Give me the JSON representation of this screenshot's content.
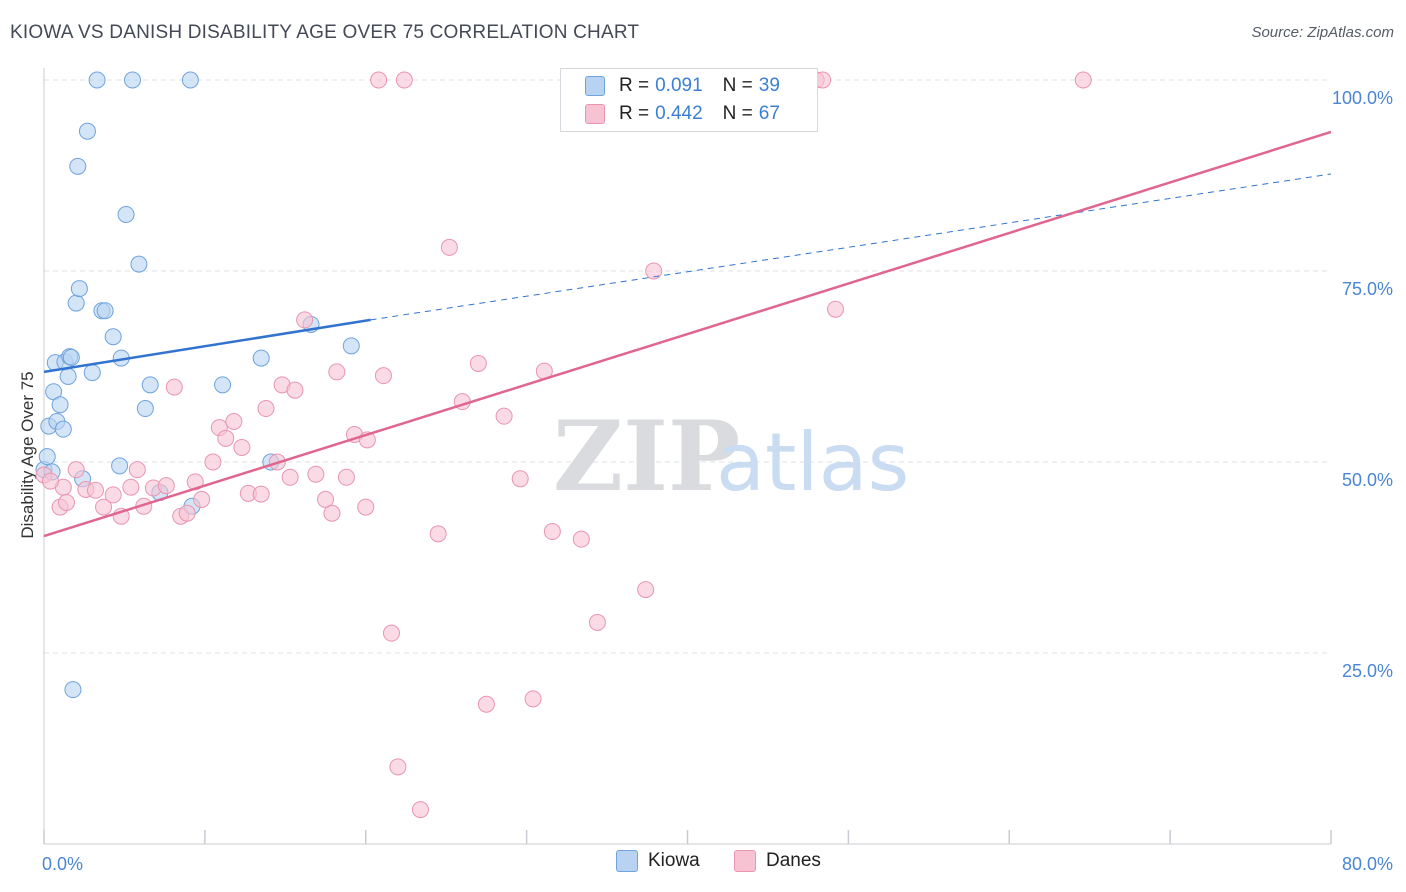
{
  "title": "KIOWA VS DANISH DISABILITY AGE OVER 75 CORRELATION CHART",
  "source": "Source: ZipAtlas.com",
  "watermark": {
    "zip": "ZIP",
    "atlas": "atlas"
  },
  "legend_top": [
    {
      "r_label": "R =",
      "r_value": "0.091",
      "n_label": "N =",
      "n_value": "39"
    },
    {
      "r_label": "R =",
      "r_value": "0.442",
      "n_label": "N =",
      "n_value": "67"
    }
  ],
  "colors": {
    "kiowa_fill": "#b8d3f2",
    "kiowa_stroke": "#6fa3dc",
    "kiowa_line": "#3273d0",
    "danes_fill": "#f7c3d3",
    "danes_stroke": "#e995b0",
    "danes_line": "#e06690",
    "tick_label": "#4a86d4",
    "grid": "#dde1e6"
  },
  "chart_data": {
    "type": "scatter",
    "title": "KIOWA VS DANISH DISABILITY AGE OVER 75 CORRELATION CHART",
    "xlabel": "",
    "ylabel": "Disability Age Over 75",
    "xlim": [
      0,
      80
    ],
    "ylim": [
      0,
      100
    ],
    "x_tick_labels": [
      {
        "value": 0,
        "label": "0.0%"
      },
      {
        "value": 80,
        "label": "80.0%"
      }
    ],
    "y_tick_labels": [
      {
        "value": 100,
        "label": "100.0%"
      },
      {
        "value": 75,
        "label": "75.0%"
      },
      {
        "value": 50,
        "label": "50.0%"
      },
      {
        "value": 25,
        "label": "25.0%"
      }
    ],
    "grid": true,
    "legend_position": "bottom",
    "series": [
      {
        "name": "Kiowa",
        "r": 0.091,
        "n": 39,
        "trend": {
          "x0": 0,
          "y0": 61.8,
          "x_solid_end": 20.3,
          "y_solid_end": 68.6,
          "x1": 80,
          "y1": 87.7
        },
        "points": [
          [
            0.0,
            49.0
          ],
          [
            0.2,
            50.7
          ],
          [
            0.3,
            54.7
          ],
          [
            0.5,
            48.7
          ],
          [
            0.6,
            59.2
          ],
          [
            0.7,
            63.0
          ],
          [
            0.8,
            55.3
          ],
          [
            1.0,
            57.5
          ],
          [
            1.2,
            54.3
          ],
          [
            1.3,
            63.1
          ],
          [
            1.5,
            61.2
          ],
          [
            1.6,
            63.8
          ],
          [
            1.7,
            63.7
          ],
          [
            1.8,
            20.2
          ],
          [
            2.0,
            70.8
          ],
          [
            2.1,
            88.7
          ],
          [
            2.2,
            72.7
          ],
          [
            2.4,
            47.8
          ],
          [
            2.7,
            93.3
          ],
          [
            3.0,
            61.7
          ],
          [
            3.3,
            100.0
          ],
          [
            3.6,
            69.8
          ],
          [
            3.8,
            69.8
          ],
          [
            4.3,
            66.4
          ],
          [
            4.7,
            49.5
          ],
          [
            4.8,
            63.6
          ],
          [
            5.1,
            82.4
          ],
          [
            5.5,
            100.0
          ],
          [
            5.9,
            75.9
          ],
          [
            6.3,
            57.0
          ],
          [
            6.6,
            60.1
          ],
          [
            7.2,
            46.0
          ],
          [
            9.1,
            100.0
          ],
          [
            9.2,
            44.2
          ],
          [
            11.1,
            60.1
          ],
          [
            13.5,
            63.6
          ],
          [
            14.1,
            50.0
          ],
          [
            16.6,
            68.0
          ],
          [
            19.1,
            65.2
          ]
        ]
      },
      {
        "name": "Danes",
        "r": 0.442,
        "n": 67,
        "trend": {
          "x0": 0,
          "y0": 40.3,
          "x1": 80,
          "y1": 93.2
        },
        "points": [
          [
            0.0,
            48.3
          ],
          [
            1.0,
            44.1
          ],
          [
            1.2,
            46.7
          ],
          [
            1.4,
            44.7
          ],
          [
            2.0,
            49.0
          ],
          [
            2.6,
            46.4
          ],
          [
            3.2,
            46.3
          ],
          [
            3.7,
            44.1
          ],
          [
            4.3,
            45.7
          ],
          [
            4.8,
            42.9
          ],
          [
            5.4,
            46.7
          ],
          [
            5.8,
            49.0
          ],
          [
            6.2,
            44.2
          ],
          [
            6.8,
            46.6
          ],
          [
            7.6,
            46.9
          ],
          [
            8.1,
            59.8
          ],
          [
            8.5,
            42.9
          ],
          [
            8.9,
            43.3
          ],
          [
            9.4,
            47.4
          ],
          [
            9.8,
            45.1
          ],
          [
            10.5,
            50.0
          ],
          [
            10.9,
            54.5
          ],
          [
            11.3,
            53.1
          ],
          [
            11.8,
            55.3
          ],
          [
            12.3,
            51.9
          ],
          [
            12.7,
            45.9
          ],
          [
            13.5,
            45.8
          ],
          [
            13.8,
            57.0
          ],
          [
            14.5,
            50.0
          ],
          [
            14.8,
            60.1
          ],
          [
            15.3,
            48.0
          ],
          [
            15.6,
            59.4
          ],
          [
            16.2,
            68.6
          ],
          [
            16.9,
            48.4
          ],
          [
            17.5,
            45.1
          ],
          [
            17.9,
            43.3
          ],
          [
            18.2,
            61.8
          ],
          [
            18.8,
            48.0
          ],
          [
            19.3,
            53.6
          ],
          [
            20.0,
            44.1
          ],
          [
            20.1,
            52.9
          ],
          [
            20.8,
            100.0
          ],
          [
            21.1,
            61.3
          ],
          [
            21.6,
            27.6
          ],
          [
            22.0,
            10.1
          ],
          [
            22.4,
            100.0
          ],
          [
            23.4,
            4.5
          ],
          [
            24.5,
            40.6
          ],
          [
            25.2,
            78.1
          ],
          [
            26.0,
            57.9
          ],
          [
            27.0,
            62.9
          ],
          [
            27.5,
            18.3
          ],
          [
            28.6,
            56.0
          ],
          [
            29.6,
            47.8
          ],
          [
            30.4,
            19.0
          ],
          [
            31.1,
            61.9
          ],
          [
            31.6,
            40.9
          ],
          [
            33.4,
            39.9
          ],
          [
            34.4,
            29.0
          ],
          [
            37.4,
            33.3
          ],
          [
            37.9,
            75.0
          ],
          [
            47.4,
            100.0
          ],
          [
            48.0,
            100.0
          ],
          [
            48.4,
            100.0
          ],
          [
            49.2,
            70.0
          ],
          [
            64.6,
            100.0
          ],
          [
            0.4,
            47.5
          ]
        ]
      }
    ]
  }
}
